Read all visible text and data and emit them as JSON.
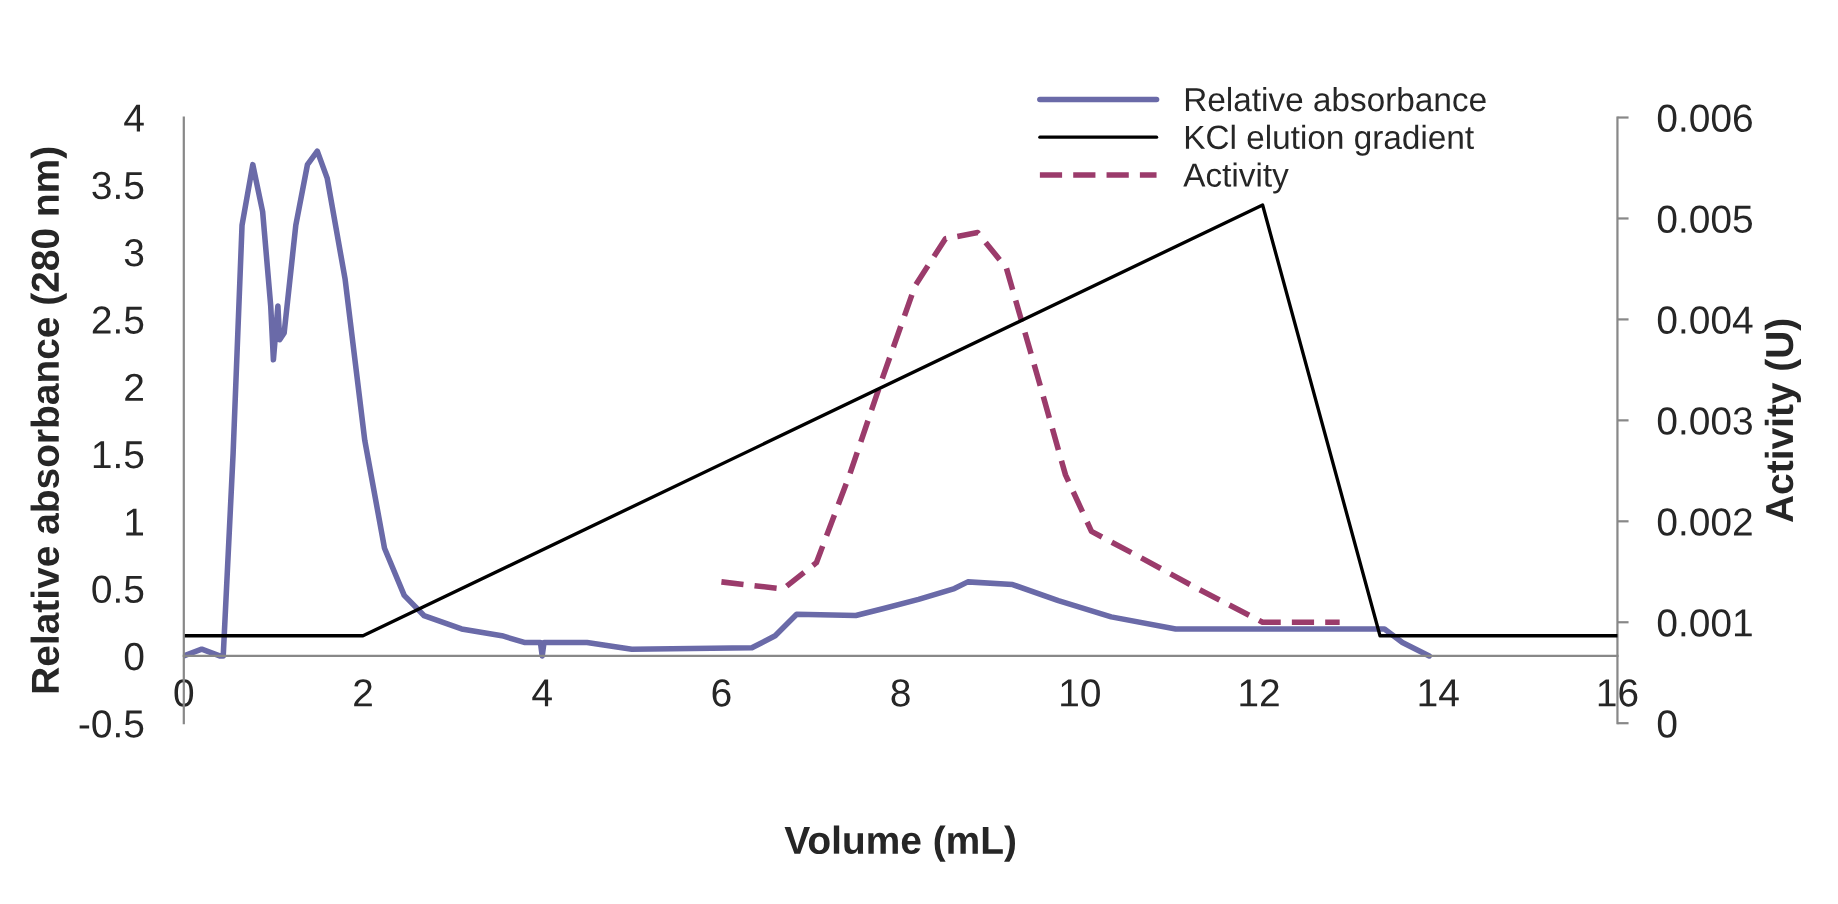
{
  "chart_data": {
    "type": "line",
    "xlabel": "Volume (mL)",
    "ylabel": "Relative absorbance (280 nm)",
    "y2label": "Activity (U)",
    "xlim": [
      0,
      16
    ],
    "xticks": [
      0,
      2,
      4,
      6,
      8,
      10,
      12,
      14,
      16
    ],
    "ylim": [
      -0.5,
      4
    ],
    "yticks": [
      -0.5,
      0,
      0.5,
      1,
      1.5,
      2,
      2.5,
      3,
      3.5,
      4
    ],
    "y2lim": [
      0,
      0.006
    ],
    "y2ticks": [
      0,
      0.001,
      0.002,
      0.003,
      0.004,
      0.005,
      0.006
    ],
    "legend": "top right",
    "grid": false,
    "series": [
      {
        "name": "Relative absorbance",
        "color": "#6a6aa8",
        "line_style": "solid",
        "x": [
          0,
          0.2,
          0.4,
          0.44,
          0.55,
          0.65,
          0.77,
          0.88,
          0.97,
          1.0,
          1.05,
          1.07,
          1.12,
          1.25,
          1.38,
          1.49,
          1.6,
          1.8,
          2.02,
          2.24,
          2.46,
          2.68,
          3.1,
          3.55,
          3.8,
          3.98,
          4.0,
          4.02,
          4.5,
          5.0,
          6.34,
          6.6,
          6.84,
          7.5,
          7.8,
          8.2,
          8.6,
          8.75,
          9.25,
          9.76,
          10.35,
          11.07,
          12.0,
          13.4,
          13.6,
          13.9
        ],
        "values": [
          0,
          0.05,
          0,
          0,
          1.5,
          3.2,
          3.65,
          3.3,
          2.6,
          2.2,
          2.6,
          2.35,
          2.4,
          3.2,
          3.65,
          3.75,
          3.55,
          2.8,
          1.6,
          0.8,
          0.45,
          0.3,
          0.2,
          0.15,
          0.1,
          0.1,
          0,
          0.1,
          0.1,
          0.05,
          0.06,
          0.15,
          0.31,
          0.3,
          0.35,
          0.42,
          0.5,
          0.55,
          0.53,
          0.41,
          0.29,
          0.2,
          0.2,
          0.2,
          0.1,
          0
        ]
      },
      {
        "name": "KCl elution gradient",
        "color": "#000000",
        "line_style": "solid",
        "x": [
          0,
          2,
          12.04,
          13.35,
          16
        ],
        "values": [
          0.15,
          0.15,
          3.35,
          0.15,
          0.15
        ]
      },
      {
        "name": "Activity",
        "color": "#9b3b6b",
        "line_style": "dashed",
        "axis": "y2",
        "x": [
          6.0,
          6.69,
          7.06,
          7.43,
          7.79,
          8.16,
          8.5,
          8.86,
          9.18,
          9.54,
          9.84,
          10.13,
          10.64,
          11.3,
          12.04,
          12.9
        ],
        "values": [
          0.0014,
          0.00133,
          0.00159,
          0.00246,
          0.0034,
          0.00433,
          0.0048,
          0.00486,
          0.00451,
          0.0034,
          0.00246,
          0.0019,
          0.00166,
          0.00134,
          0.001,
          0.001
        ]
      }
    ]
  }
}
